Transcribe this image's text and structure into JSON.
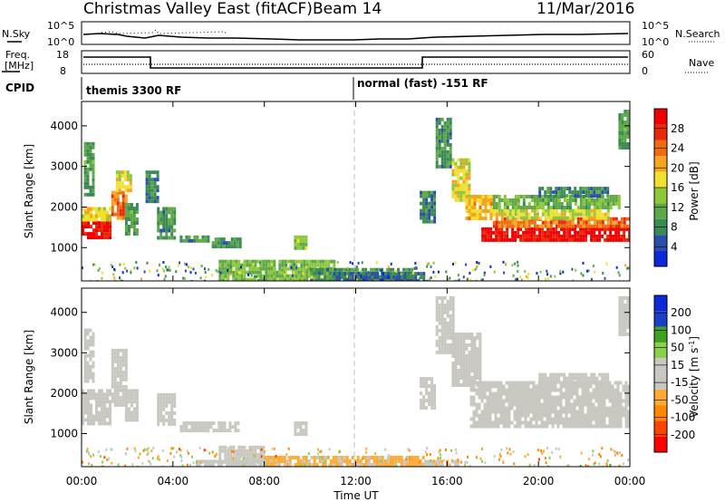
{
  "header": {
    "title": "Christmas Valley East (fitACF)",
    "beam": "Beam 14",
    "date": "11/Mar/2016"
  },
  "strips": {
    "nsky_label": "N.Sky",
    "nsearch_label": "N.Search",
    "nsky_ticks": [
      "10^5",
      "10^0"
    ],
    "nsearch_ticks": [
      "10^5",
      "10^0"
    ],
    "freq_label_1": "Freq.",
    "freq_label_2": "[MHz]",
    "freq_ticks": [
      "18",
      "8"
    ],
    "nave_label": "Nave",
    "nave_ticks": [
      "60",
      "0"
    ],
    "cpid_label": "CPID",
    "cpid_1": "themis 3300 RF",
    "cpid_2": "normal (fast) -151 RF"
  },
  "colors": {
    "power": [
      "#0a2ad8",
      "#2b4fa8",
      "#3a8a55",
      "#5fa84a",
      "#8cc83a",
      "#f0e030",
      "#f5a51e",
      "#f06a10",
      "#e82a0a",
      "#f00000"
    ],
    "velocity": [
      "#ff0000",
      "#ff4400",
      "#ff8800",
      "#ffaa33",
      "#c8c8c0",
      "#c8c8c0",
      "#8ad04a",
      "#40a020",
      "#1a40c8",
      "#0a2ad8"
    ]
  },
  "chart_data": [
    {
      "type": "heatmap",
      "name": "power",
      "ylabel": "Slant Range [km]",
      "ylim": [
        180,
        4600
      ],
      "yticks": [
        "1000",
        "2000",
        "3000",
        "4000"
      ],
      "colorbar_label": "Power [dB]",
      "colorbar_ticks": [
        "4",
        "8",
        "12",
        "16",
        "20",
        "24",
        "28"
      ],
      "colorbar_range": [
        0,
        32
      ],
      "xlim": [
        0,
        24
      ],
      "patches": [
        {
          "t0": 0.0,
          "t1": 1.3,
          "r0": 1250,
          "r1": 1650,
          "v": 30
        },
        {
          "t0": 0.0,
          "t1": 1.3,
          "r0": 1650,
          "r1": 2000,
          "v": 18
        },
        {
          "t0": 1.3,
          "t1": 1.9,
          "r0": 1700,
          "r1": 2400,
          "v": 24
        },
        {
          "t0": 1.5,
          "t1": 2.1,
          "r0": 2400,
          "r1": 2900,
          "v": 17
        },
        {
          "t0": 0.1,
          "t1": 0.5,
          "r0": 2300,
          "r1": 3600,
          "v": 10
        },
        {
          "t0": 1.9,
          "t1": 2.4,
          "r0": 1300,
          "r1": 2100,
          "v": 10
        },
        {
          "t0": 2.8,
          "t1": 3.3,
          "r0": 2100,
          "r1": 2900,
          "v": 8
        },
        {
          "t0": 3.3,
          "t1": 4.1,
          "r0": 1200,
          "r1": 2000,
          "v": 9
        },
        {
          "t0": 4.3,
          "t1": 5.5,
          "r0": 1150,
          "r1": 1300,
          "v": 9
        },
        {
          "t0": 5.7,
          "t1": 6.9,
          "r0": 1050,
          "r1": 1250,
          "v": 9
        },
        {
          "t0": 9.3,
          "t1": 9.8,
          "r0": 950,
          "r1": 1300,
          "v": 14
        },
        {
          "t0": 6.0,
          "t1": 11.0,
          "r0": 250,
          "r1": 700,
          "v": 13
        },
        {
          "t0": 10.0,
          "t1": 14.5,
          "r0": 200,
          "r1": 500,
          "v": 9
        },
        {
          "t0": 11.0,
          "t1": 15.0,
          "r0": 200,
          "r1": 400,
          "v": 6
        },
        {
          "t0": 14.8,
          "t1": 15.4,
          "r0": 1600,
          "r1": 2400,
          "v": 8
        },
        {
          "t0": 15.5,
          "t1": 16.2,
          "r0": 3000,
          "r1": 4200,
          "v": 9
        },
        {
          "t0": 16.2,
          "t1": 17.0,
          "r0": 2200,
          "r1": 3200,
          "v": 17
        },
        {
          "t0": 16.8,
          "t1": 18.0,
          "r0": 1700,
          "r1": 2300,
          "v": 20
        },
        {
          "t0": 17.5,
          "t1": 24.0,
          "r0": 1200,
          "r1": 1500,
          "v": 30
        },
        {
          "t0": 18.0,
          "t1": 24.0,
          "r0": 1500,
          "r1": 1750,
          "v": 24
        },
        {
          "t0": 18.0,
          "t1": 23.0,
          "r0": 1750,
          "r1": 1950,
          "v": 17
        },
        {
          "t0": 18.0,
          "t1": 23.5,
          "r0": 1950,
          "r1": 2300,
          "v": 12
        },
        {
          "t0": 20.0,
          "t1": 23.0,
          "r0": 2300,
          "r1": 2500,
          "v": 8
        },
        {
          "t0": 23.5,
          "t1": 24.0,
          "r0": 3500,
          "r1": 4400,
          "v": 10
        }
      ]
    },
    {
      "type": "heatmap",
      "name": "velocity",
      "ylabel": "Slant Range [km]",
      "ylim": [
        180,
        4600
      ],
      "yticks": [
        "1000",
        "2000",
        "3000",
        "4000"
      ],
      "xlabel": "Time UT",
      "xticks": [
        "00:00",
        "04:00",
        "08:00",
        "12:00",
        "16:00",
        "20:00",
        "00:00"
      ],
      "xlim": [
        0,
        24
      ],
      "colorbar_label": "Velocity [m s^-1]",
      "colorbar_ticks": [
        "200",
        "100",
        "50",
        "15",
        "-15",
        "-50",
        "-100",
        "-200"
      ],
      "colorbar_range": [
        -250,
        250
      ],
      "patches": [
        {
          "t0": 0.0,
          "t1": 1.3,
          "r0": 1250,
          "r1": 2100,
          "v": 0
        },
        {
          "t0": 1.3,
          "t1": 2.0,
          "r0": 1700,
          "r1": 3100,
          "v": 0
        },
        {
          "t0": 0.1,
          "t1": 0.5,
          "r0": 2300,
          "r1": 3600,
          "v": 0
        },
        {
          "t0": 1.9,
          "t1": 2.4,
          "r0": 1300,
          "r1": 2100,
          "v": 0
        },
        {
          "t0": 3.3,
          "t1": 4.1,
          "r0": 1200,
          "r1": 2000,
          "v": 0
        },
        {
          "t0": 4.3,
          "t1": 6.9,
          "r0": 1050,
          "r1": 1300,
          "v": 0
        },
        {
          "t0": 9.3,
          "t1": 9.8,
          "r0": 950,
          "r1": 1300,
          "v": 0
        },
        {
          "t0": 6.0,
          "t1": 8.0,
          "r0": 300,
          "r1": 700,
          "v": 30
        },
        {
          "t0": 8.0,
          "t1": 15.0,
          "r0": 200,
          "r1": 450,
          "v": -60
        },
        {
          "t0": 5.0,
          "t1": 8.0,
          "r0": 200,
          "r1": 350,
          "v": -30
        },
        {
          "t0": 15.0,
          "t1": 16.5,
          "r0": 200,
          "r1": 350,
          "v": -40
        },
        {
          "t0": 14.8,
          "t1": 15.4,
          "r0": 1600,
          "r1": 2400,
          "v": 25
        },
        {
          "t0": 15.5,
          "t1": 16.3,
          "r0": 3000,
          "r1": 4400,
          "v": 0
        },
        {
          "t0": 16.2,
          "t1": 17.5,
          "r0": 2200,
          "r1": 3500,
          "v": 0
        },
        {
          "t0": 17.0,
          "t1": 24.0,
          "r0": 1200,
          "r1": 2300,
          "v": 0
        },
        {
          "t0": 20.0,
          "t1": 23.0,
          "r0": 2300,
          "r1": 2500,
          "v": 0
        },
        {
          "t0": 23.5,
          "t1": 24.0,
          "r0": 3500,
          "r1": 4400,
          "v": 0
        }
      ]
    }
  ]
}
